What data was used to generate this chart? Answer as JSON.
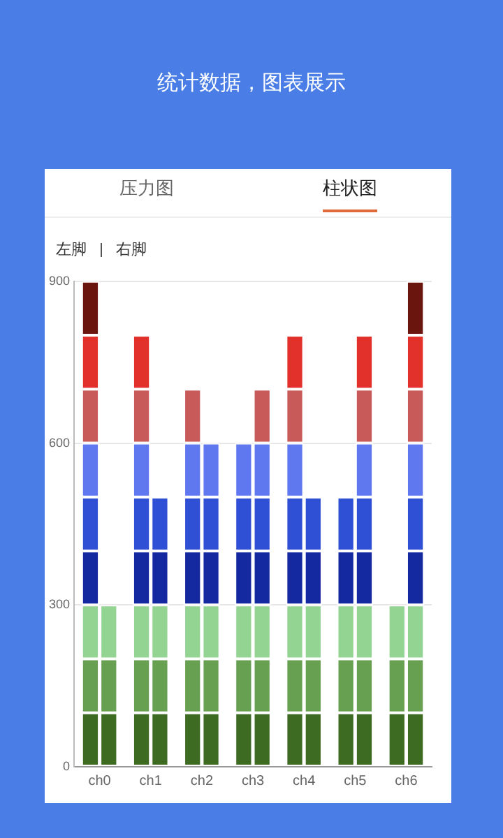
{
  "chart_data": {
    "type": "bar",
    "title": "统计数据，图表展示",
    "annotations": [
      "压力图",
      "柱状图",
      "左脚",
      "右脚"
    ],
    "categories": [
      "ch0",
      "ch1",
      "ch2",
      "ch3",
      "ch4",
      "ch5",
      "ch6"
    ],
    "ylim": [
      0,
      900
    ],
    "yticks": [
      0,
      300,
      600,
      900
    ],
    "grid": "y",
    "series": [
      {
        "color": "#3d6b22",
        "values": [
          100,
          100,
          100,
          100,
          100,
          100,
          100
        ],
        "base": [
          0,
          0,
          0,
          0,
          0,
          0,
          0
        ]
      },
      {
        "color": "#66a050",
        "values": [
          100,
          100,
          100,
          100,
          100,
          100,
          100
        ],
        "base": [
          100,
          100,
          100,
          100,
          100,
          100,
          100
        ]
      },
      {
        "color": "#93d492",
        "values": [
          100,
          100,
          100,
          100,
          100,
          100,
          100
        ],
        "base": [
          200,
          200,
          200,
          200,
          200,
          200,
          200
        ]
      },
      {
        "color": "#1428a0",
        "values": [
          100,
          100,
          100,
          100,
          100,
          100,
          null
        ],
        "base": [
          300,
          300,
          300,
          300,
          300,
          300,
          null
        ]
      },
      {
        "color": "#2f4fd4",
        "values": [
          100,
          100,
          100,
          100,
          100,
          100,
          null
        ],
        "base": [
          400,
          400,
          400,
          400,
          400,
          400,
          null
        ]
      },
      {
        "color": "#5f78f0",
        "values": [
          100,
          100,
          100,
          100,
          100,
          null,
          null
        ],
        "base": [
          500,
          500,
          500,
          500,
          500,
          null,
          null
        ]
      },
      {
        "color": "#c85a5a",
        "values": [
          100,
          100,
          100,
          null,
          100,
          null,
          null
        ],
        "base": [
          600,
          600,
          600,
          null,
          600,
          null,
          null
        ]
      },
      {
        "color": "#e2302a",
        "values": [
          100,
          100,
          null,
          null,
          100,
          null,
          null
        ],
        "base": [
          700,
          700,
          null,
          null,
          700,
          null,
          null
        ]
      },
      {
        "color": "#6b150f",
        "values": [
          100,
          null,
          null,
          null,
          null,
          null,
          null
        ],
        "base": [
          800,
          null,
          null,
          null,
          null,
          null,
          null
        ]
      },
      {
        "color": "#3d6b22",
        "values": [
          100,
          100,
          100,
          100,
          100,
          100,
          100
        ],
        "base": [
          0,
          0,
          0,
          0,
          0,
          0,
          0
        ]
      },
      {
        "color": "#66a050",
        "values": [
          100,
          100,
          100,
          100,
          100,
          100,
          100
        ],
        "base": [
          100,
          100,
          100,
          100,
          100,
          100,
          100
        ]
      },
      {
        "color": "#93d492",
        "values": [
          100,
          100,
          100,
          100,
          100,
          100,
          100
        ],
        "base": [
          200,
          200,
          200,
          200,
          200,
          200,
          200
        ]
      },
      {
        "color": "#1428a0",
        "values": [
          null,
          100,
          100,
          100,
          100,
          100,
          100
        ],
        "base": [
          null,
          300,
          300,
          300,
          300,
          300,
          300
        ]
      },
      {
        "color": "#2f4fd4",
        "values": [
          null,
          100,
          100,
          100,
          100,
          100,
          100
        ],
        "base": [
          null,
          400,
          400,
          400,
          400,
          400,
          400
        ]
      },
      {
        "color": "#5f78f0",
        "values": [
          null,
          null,
          100,
          100,
          null,
          100,
          100
        ],
        "base": [
          null,
          null,
          500,
          500,
          null,
          500,
          500
        ]
      },
      {
        "color": "#c85a5a",
        "values": [
          null,
          null,
          null,
          100,
          null,
          100,
          100
        ],
        "base": [
          null,
          null,
          null,
          600,
          null,
          600,
          600
        ]
      },
      {
        "color": "#e2302a",
        "values": [
          null,
          null,
          null,
          null,
          null,
          100,
          100
        ],
        "base": [
          null,
          null,
          null,
          null,
          null,
          700,
          700
        ]
      },
      {
        "color": "#6b150f",
        "values": [
          null,
          null,
          null,
          null,
          null,
          null,
          100
        ],
        "base": [
          null,
          null,
          null,
          null,
          null,
          null,
          800
        ]
      }
    ]
  }
}
